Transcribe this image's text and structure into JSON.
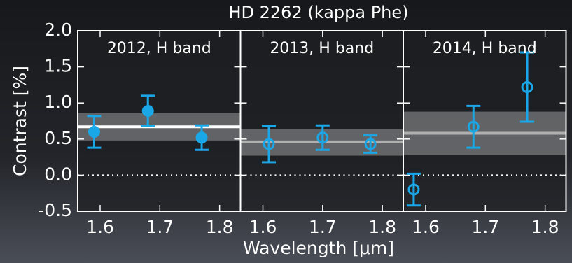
{
  "figure": {
    "title": "HD 2262 (kappa Phe)",
    "xlabel": "Wavelength [μm]",
    "ylabel": "Contrast [%]"
  },
  "chart_data": [
    {
      "type": "errorbar",
      "subtitle": "2012, H band",
      "x": [
        1.59,
        1.68,
        1.77
      ],
      "values": [
        0.6,
        0.89,
        0.52
      ],
      "errors": [
        0.22,
        0.21,
        0.17
      ],
      "mean": 0.67,
      "band": [
        0.48,
        0.86
      ],
      "color": "#1aa7e8",
      "mean_color": "#ffffff",
      "filled": true,
      "xlim": [
        1.5625,
        1.835
      ],
      "ylim": [
        -0.5,
        2.0
      ],
      "xticks": [
        1.6,
        1.7,
        1.8
      ],
      "yticks": [
        {
          "value": 2.0,
          "label": "2.0"
        },
        {
          "value": 1.5,
          "label": "1.5"
        },
        {
          "value": 1.0,
          "label": "1.0"
        },
        {
          "value": 0.5,
          "label": "0.5"
        },
        {
          "value": 0.0,
          "label": "0.0"
        },
        {
          "value": -0.5,
          "label": "-0.5"
        }
      ]
    },
    {
      "type": "errorbar",
      "subtitle": "2013, H band",
      "x": [
        1.61,
        1.7,
        1.78
      ],
      "values": [
        0.43,
        0.52,
        0.43
      ],
      "errors": [
        0.25,
        0.17,
        0.12
      ],
      "mean": 0.46,
      "band": [
        0.27,
        0.64
      ],
      "color": "#1aa7e8",
      "mean_color": "#b0b0b0",
      "filled": false,
      "xlim": [
        1.5625,
        1.835
      ],
      "ylim": [
        -0.5,
        2.0
      ],
      "xticks": [
        1.6,
        1.7,
        1.8
      ]
    },
    {
      "type": "errorbar",
      "subtitle": "2014, H band",
      "x": [
        1.58,
        1.68,
        1.77
      ],
      "values": [
        -0.2,
        0.67,
        1.22
      ],
      "errors": [
        0.22,
        0.29,
        0.48
      ],
      "mean": 0.58,
      "band": [
        0.28,
        0.88
      ],
      "color": "#1aa7e8",
      "mean_color": "#b0b0b0",
      "filled": false,
      "xlim": [
        1.5625,
        1.835
      ],
      "ylim": [
        -0.5,
        2.0
      ],
      "xticks": [
        1.6,
        1.7,
        1.8
      ]
    }
  ]
}
